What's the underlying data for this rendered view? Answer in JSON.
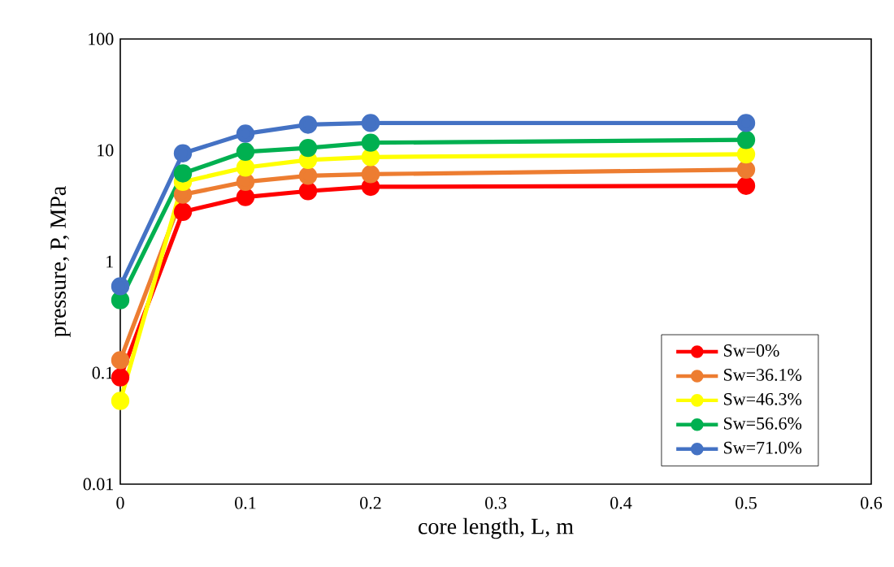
{
  "chart_data": {
    "type": "line",
    "xlabel": "core length, L, m",
    "ylabel": "pressure, P, MPa",
    "x": [
      0,
      0.05,
      0.1,
      0.15,
      0.2,
      0.5
    ],
    "series": [
      {
        "name": "Sw=0%",
        "color": "#ff0000",
        "values": [
          0.091,
          2.8,
          3.8,
          4.3,
          4.7,
          4.8
        ]
      },
      {
        "name": "Sw=36.1%",
        "color": "#ed7d31",
        "values": [
          0.13,
          4.0,
          5.2,
          5.9,
          6.1,
          6.7
        ]
      },
      {
        "name": "Sw=46.3%",
        "color": "#ffff00",
        "values": [
          0.056,
          5.2,
          7.0,
          8.2,
          8.7,
          9.2
        ]
      },
      {
        "name": "Sw=56.6%",
        "color": "#00b050",
        "values": [
          0.45,
          6.2,
          9.7,
          10.5,
          11.7,
          12.4
        ]
      },
      {
        "name": "Sw=71.0%",
        "color": "#4472c4",
        "values": [
          0.6,
          9.4,
          14.1,
          17,
          17.6,
          17.6
        ]
      }
    ],
    "xlim": [
      0,
      0.6
    ],
    "xticks": [
      0,
      0.1,
      0.2,
      0.3,
      0.4,
      0.5,
      0.6
    ],
    "ylim": [
      0.01,
      100
    ],
    "yticks": [
      0.01,
      0.1,
      1,
      10,
      100
    ],
    "log": "y",
    "grid": false,
    "legend": "bottom right",
    "marker": "circle",
    "line_style": "solid"
  }
}
